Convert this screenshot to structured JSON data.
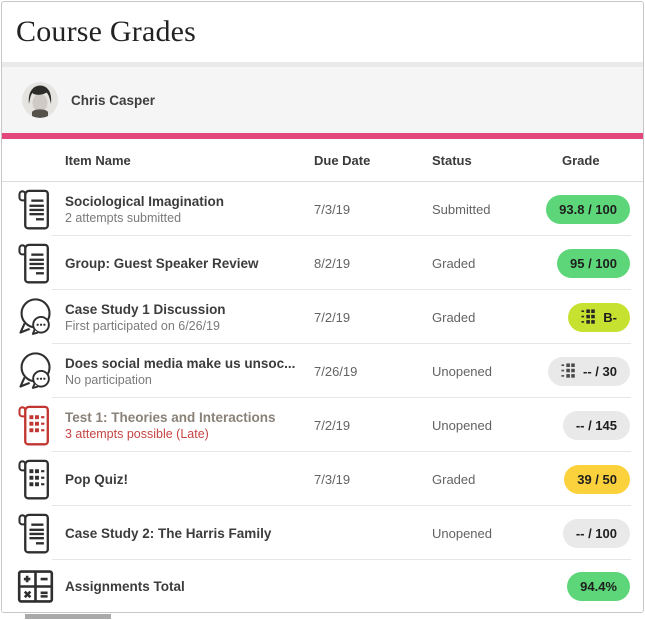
{
  "page": {
    "title": "Course Grades"
  },
  "student": {
    "name": "Chris Casper",
    "avatar": "student-photo"
  },
  "table": {
    "headers": {
      "item": "Item Name",
      "due": "Due Date",
      "status": "Status",
      "grade": "Grade"
    },
    "rows": [
      {
        "icon": "assignment",
        "title": "Sociological Imagination",
        "subtitle": "2 attempts submitted",
        "due": "7/3/19",
        "status": "Submitted",
        "grade": "93.8 / 100",
        "pill": "green",
        "rubric": false
      },
      {
        "icon": "assignment",
        "title": "Group: Guest Speaker Review",
        "subtitle": "",
        "due": "8/2/19",
        "status": "Graded",
        "grade": "95 / 100",
        "pill": "green",
        "rubric": false
      },
      {
        "icon": "discussion",
        "title": "Case Study 1 Discussion",
        "subtitle": "First participated on 6/26/19",
        "due": "7/2/19",
        "status": "Graded",
        "grade": "B-",
        "pill": "lime",
        "rubric": true
      },
      {
        "icon": "discussion",
        "title": "Does social media make us unsoc...",
        "subtitle": "No participation",
        "due": "7/26/19",
        "status": "Unopened",
        "grade": "-- / 30",
        "pill": "gray",
        "rubric": true
      },
      {
        "icon": "test-red",
        "title": "Test 1: Theories and Interactions",
        "subtitle": "3 attempts possible (Late)",
        "subtitle_alert": true,
        "title_muted": true,
        "due": "7/2/19",
        "status": "Unopened",
        "grade": "-- / 145",
        "pill": "gray",
        "rubric": false
      },
      {
        "icon": "test",
        "title": "Pop Quiz!",
        "subtitle": "",
        "due": "7/3/19",
        "status": "Graded",
        "grade": "39 / 50",
        "pill": "yellow",
        "rubric": false
      },
      {
        "icon": "assignment",
        "title": "Case Study 2: The Harris Family",
        "subtitle": "",
        "due": "",
        "status": "Unopened",
        "grade": "-- / 100",
        "pill": "gray",
        "rubric": false
      },
      {
        "icon": "calculator",
        "title": "Assignments Total",
        "subtitle": "",
        "due": "",
        "status": "",
        "grade": "94.4%",
        "pill": "green",
        "rubric": false,
        "total": true
      }
    ]
  },
  "colors": {
    "accent_pink": "#e2487d",
    "alert_red": "#c64444",
    "test_icon_red": "#c13631",
    "icon_dark": "#2f2f2f",
    "pills": {
      "green": "#5dd679",
      "lime": "#c6e130",
      "yellow": "#fcd23c",
      "gray": "#e9e9e9"
    }
  }
}
